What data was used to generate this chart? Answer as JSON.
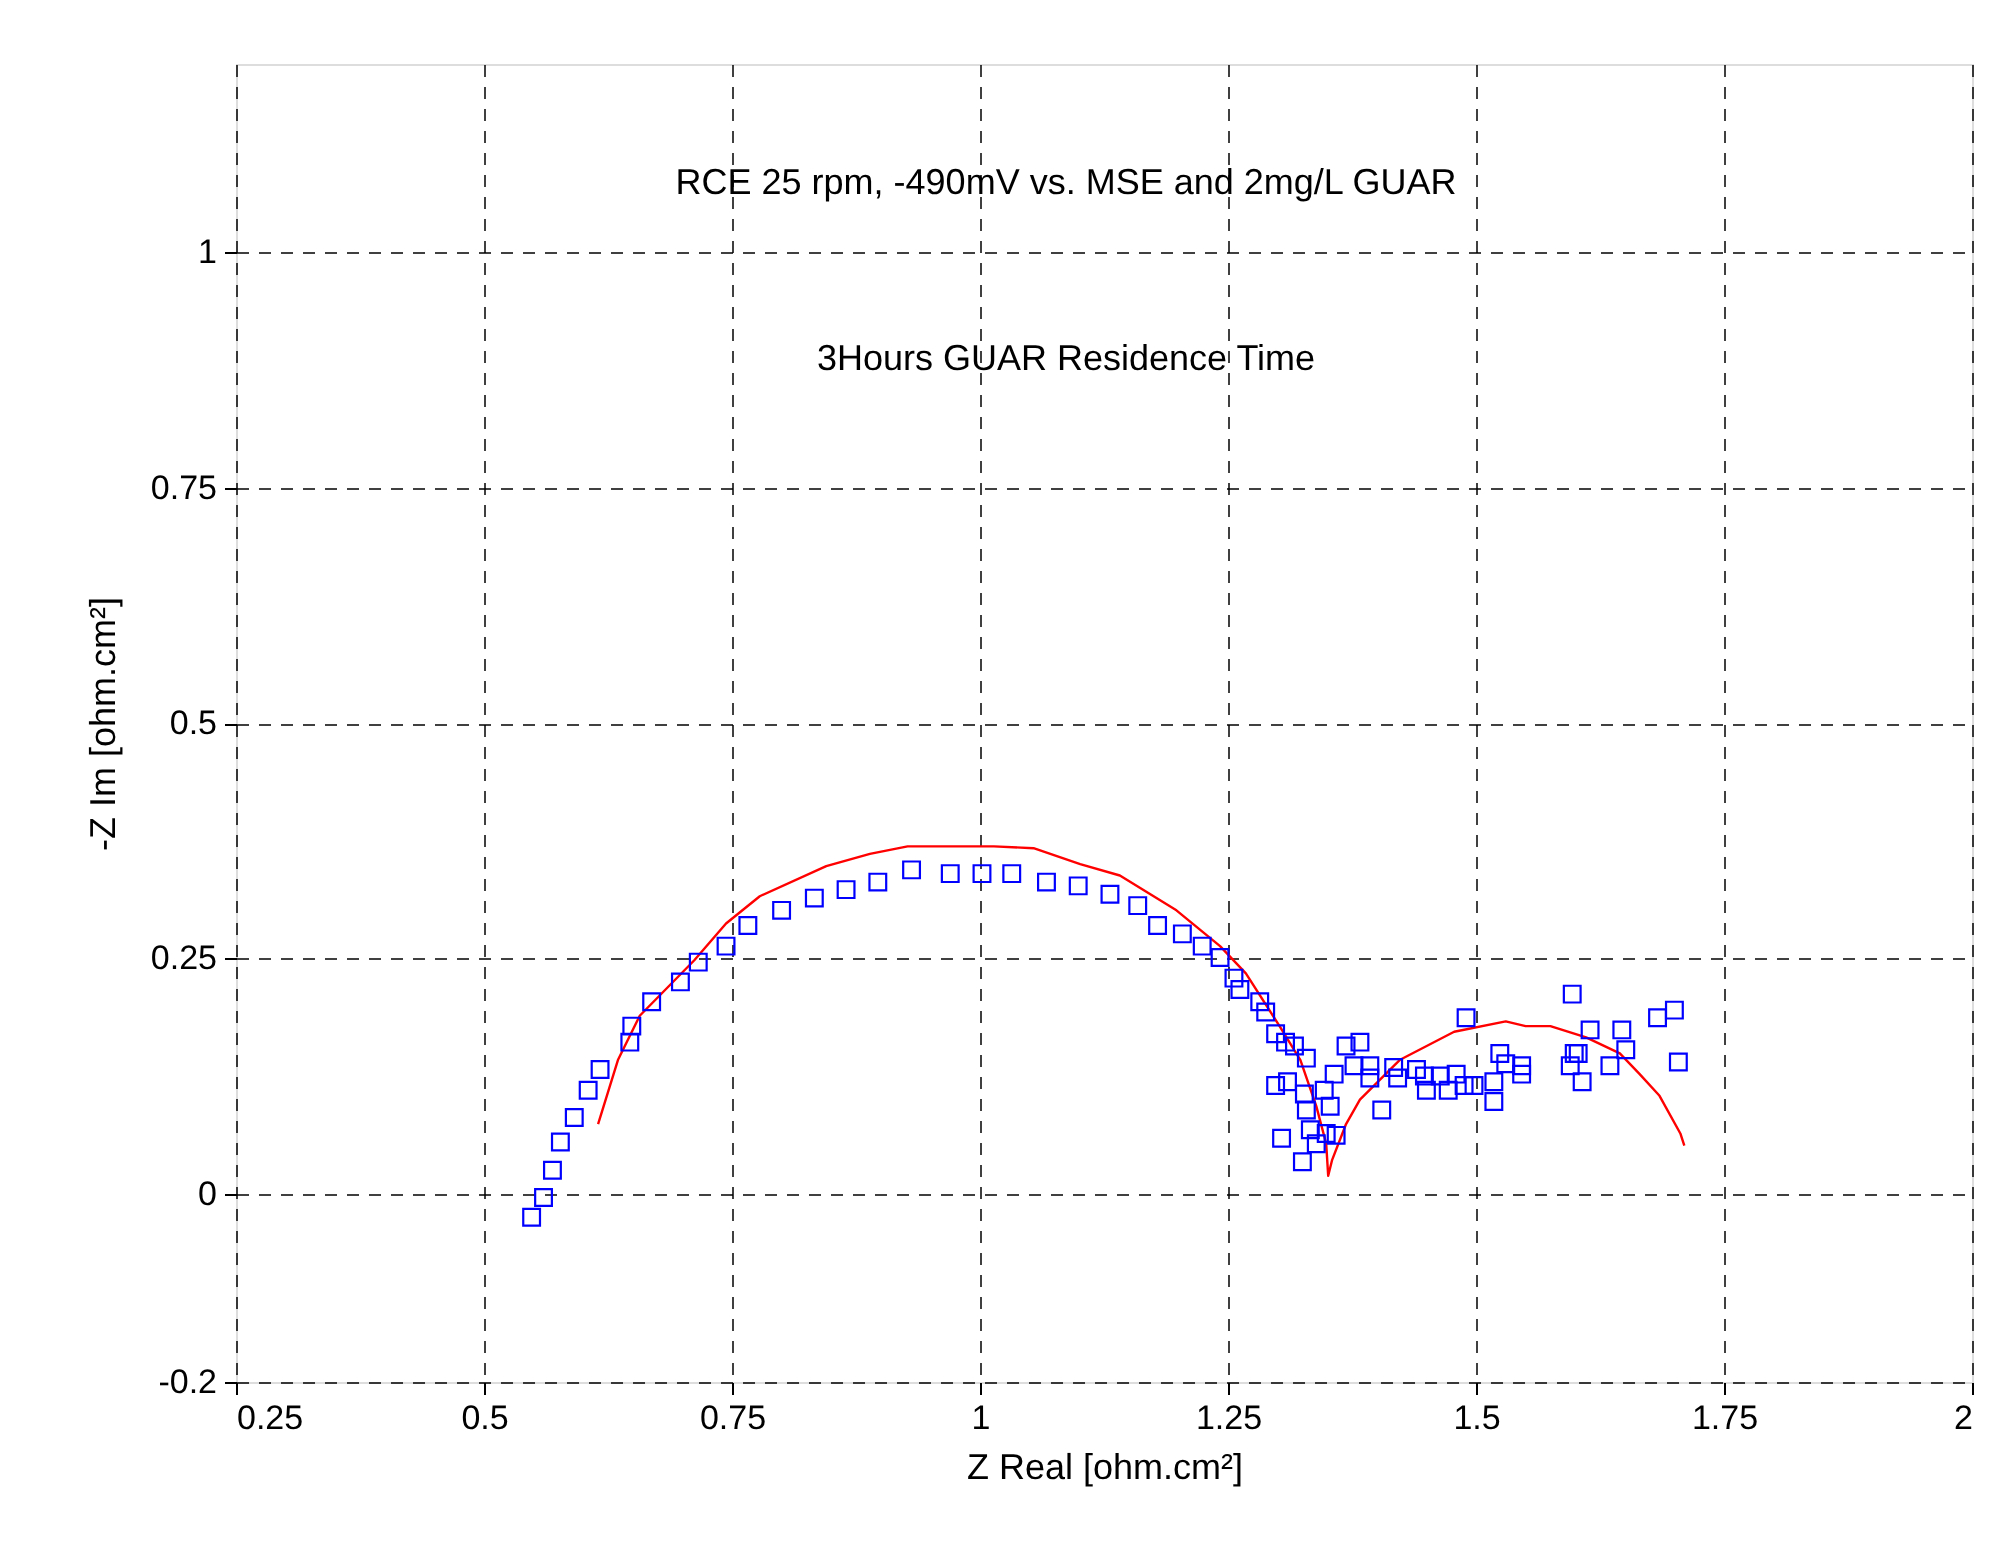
{
  "chart_data": {
    "type": "scatter",
    "xlabel": "Z Real [ohm.cm²]",
    "ylabel": "-Z Im [ohm.cm²]",
    "annotations": [
      "RCE 25 rpm, -490mV vs. MSE and 2mg/L GUAR",
      "3Hours GUAR Residence Time"
    ],
    "xlim": [
      0.25,
      2
    ],
    "ylim": [
      -0.2,
      1.2
    ],
    "xticks": [
      0.25,
      0.5,
      0.75,
      1,
      1.25,
      1.5,
      1.75,
      2
    ],
    "yticks": [
      -0.2,
      0,
      0.25,
      0.5,
      0.75,
      1
    ],
    "grid": true,
    "legend": false,
    "series": [
      {
        "color": "#0000ff",
        "marker": "square",
        "x": [
          0.548,
          0.56,
          0.569,
          0.577,
          0.591,
          0.605,
          0.617,
          0.647,
          0.649,
          0.669,
          0.698,
          0.716,
          0.744,
          0.766,
          0.8,
          0.833,
          0.865,
          0.897,
          0.931,
          0.97,
          1.002,
          1.032,
          1.067,
          1.099,
          1.131,
          1.159,
          1.179,
          1.204,
          1.224,
          1.242,
          1.256,
          1.262,
          1.282,
          1.288,
          1.298,
          1.308,
          1.317,
          1.329,
          1.298,
          1.31,
          1.327,
          1.329,
          1.347,
          1.357,
          1.353,
          1.333,
          1.349,
          1.359,
          1.304,
          1.325,
          1.339,
          1.369,
          1.383,
          1.377,
          1.393,
          1.393,
          1.405,
          1.417,
          1.421,
          1.44,
          1.448,
          1.45,
          1.464,
          1.472,
          1.48,
          1.488,
          1.498,
          1.518,
          1.518,
          1.49,
          1.524,
          1.53,
          1.546,
          1.546,
          1.597,
          1.599,
          1.595,
          1.615,
          1.603,
          1.607,
          1.647,
          1.651,
          1.635,
          1.683,
          1.7,
          1.704
        ],
        "values": [
          -0.025,
          -0.004,
          0.025,
          0.055,
          0.081,
          0.11,
          0.132,
          0.161,
          0.178,
          0.204,
          0.225,
          0.246,
          0.263,
          0.285,
          0.301,
          0.314,
          0.323,
          0.331,
          0.344,
          0.34,
          0.34,
          0.34,
          0.331,
          0.327,
          0.318,
          0.306,
          0.285,
          0.276,
          0.263,
          0.251,
          0.229,
          0.217,
          0.204,
          0.193,
          0.17,
          0.161,
          0.157,
          0.144,
          0.115,
          0.119,
          0.106,
          0.089,
          0.11,
          0.127,
          0.093,
          0.068,
          0.064,
          0.062,
          0.059,
          0.034,
          0.053,
          0.157,
          0.161,
          0.136,
          0.136,
          0.123,
          0.089,
          0.134,
          0.123,
          0.132,
          0.125,
          0.11,
          0.125,
          0.11,
          0.127,
          0.115,
          0.115,
          0.119,
          0.098,
          0.187,
          0.149,
          0.138,
          0.136,
          0.127,
          0.212,
          0.149,
          0.136,
          0.174,
          0.149,
          0.119,
          0.174,
          0.153,
          0.136,
          0.187,
          0.195,
          0.14
        ]
      },
      {
        "type": "line",
        "color": "#ff0000",
        "marker": "none",
        "line_style": "solid",
        "x": [
          0.615,
          0.635,
          0.657,
          0.712,
          0.744,
          0.778,
          0.845,
          0.889,
          0.927,
          1.014,
          1.054,
          1.101,
          1.141,
          1.198,
          1.242,
          1.268,
          1.302,
          1.323,
          1.339,
          1.349,
          1.351,
          1.355,
          1.369,
          1.383,
          1.423,
          1.478,
          1.53,
          1.55,
          1.575,
          1.611,
          1.645,
          1.665,
          1.685,
          1.706,
          1.71
        ],
        "values": [
          0.074,
          0.142,
          0.189,
          0.248,
          0.287,
          0.316,
          0.348,
          0.361,
          0.369,
          0.369,
          0.367,
          0.35,
          0.338,
          0.301,
          0.263,
          0.234,
          0.178,
          0.142,
          0.093,
          0.053,
          0.019,
          0.036,
          0.074,
          0.1,
          0.142,
          0.172,
          0.183,
          0.178,
          0.178,
          0.166,
          0.149,
          0.127,
          0.104,
          0.064,
          0.051
        ]
      }
    ]
  }
}
